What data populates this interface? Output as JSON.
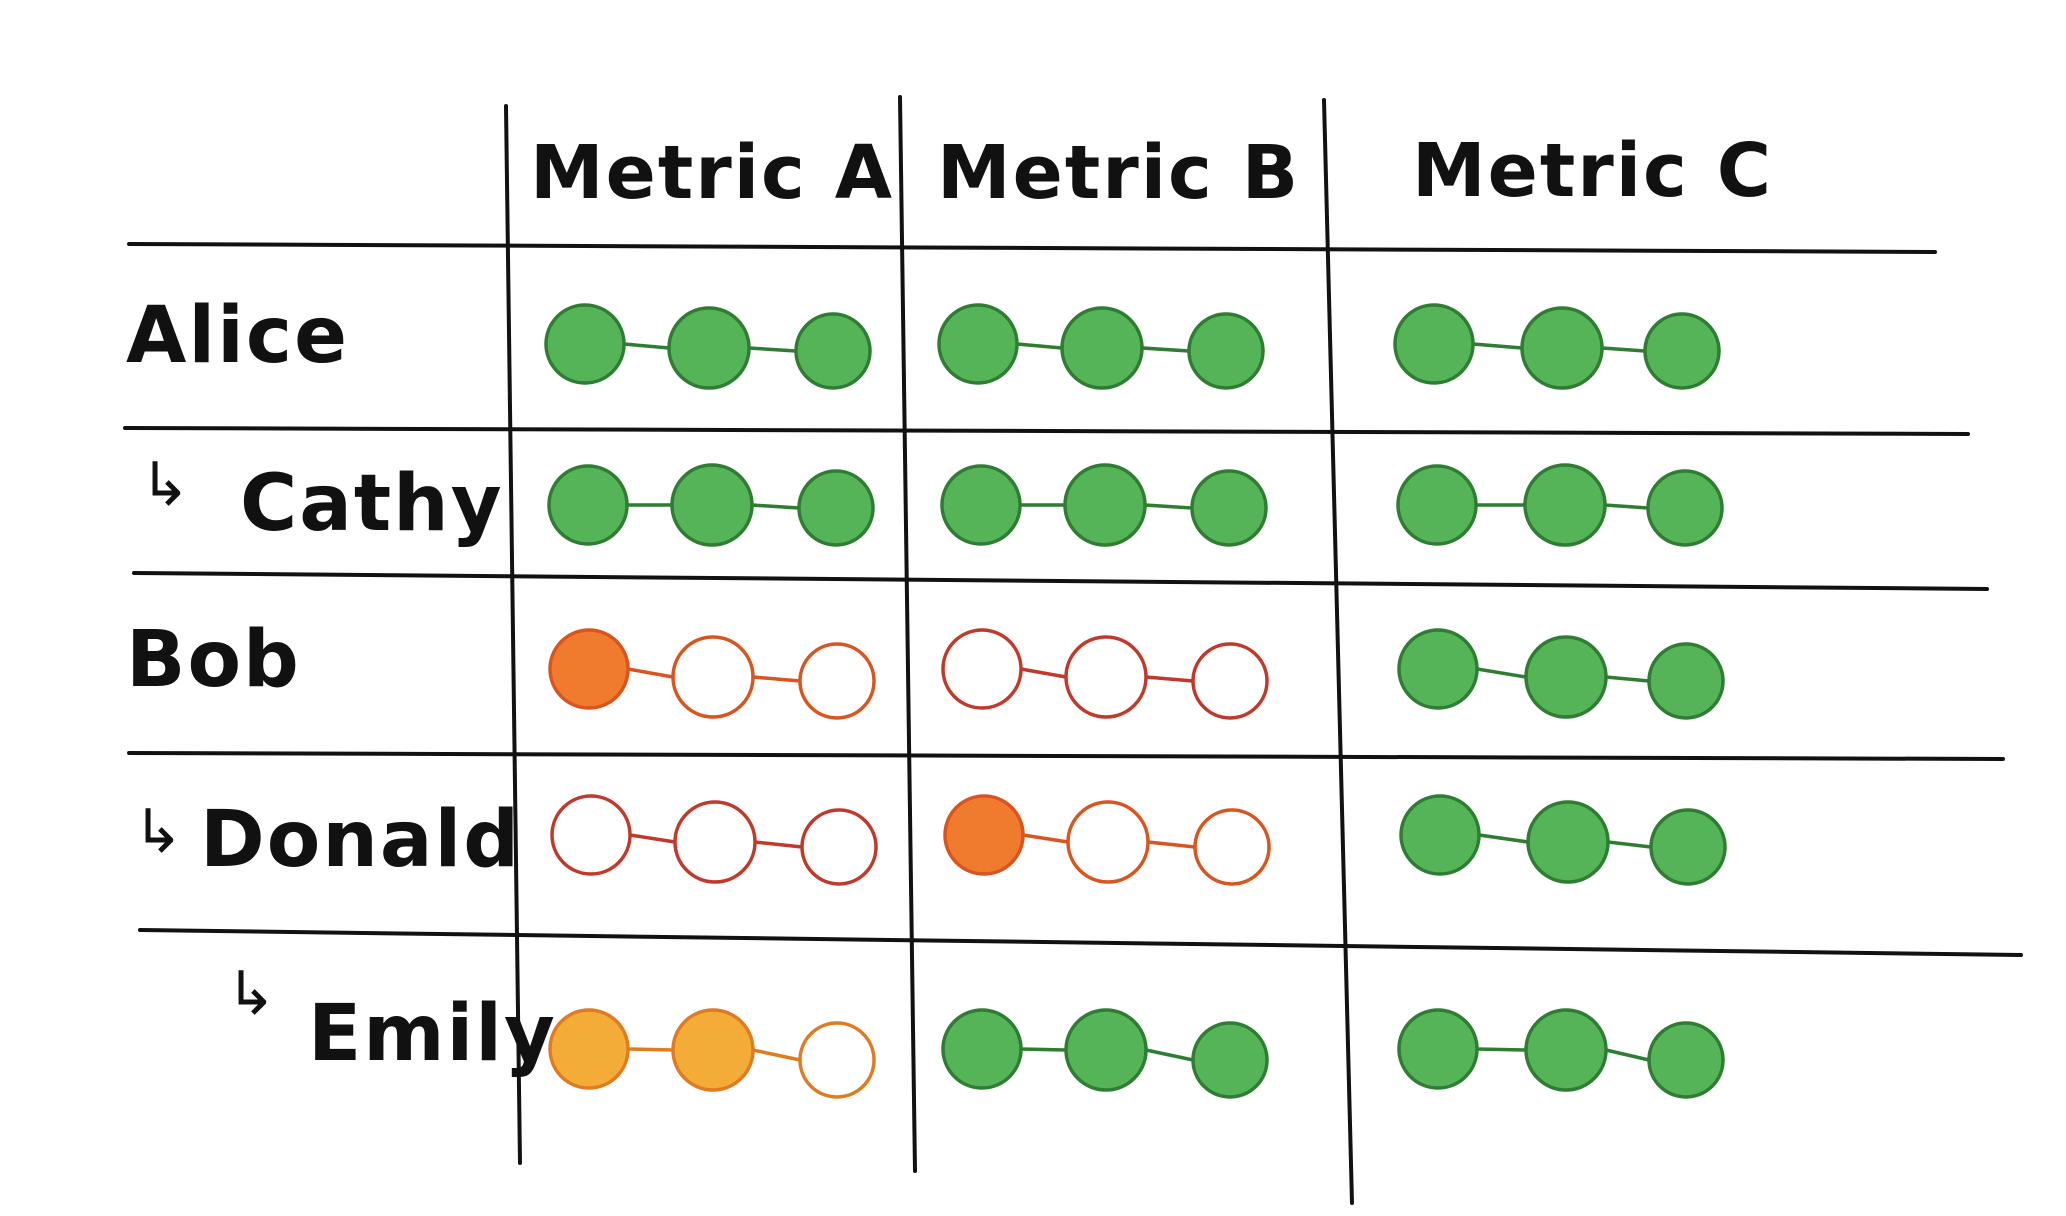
{
  "columns": [
    {
      "label": "Metric A"
    },
    {
      "label": "Metric B"
    },
    {
      "label": "Metric C"
    }
  ],
  "rows": [
    {
      "name": "Alice",
      "child": false,
      "arrow": "",
      "metrics": [
        {
          "status": "green",
          "filled": 3
        },
        {
          "status": "green",
          "filled": 3
        },
        {
          "status": "green",
          "filled": 3
        }
      ]
    },
    {
      "name": "Cathy",
      "child": true,
      "arrow": "↳",
      "metrics": [
        {
          "status": "green",
          "filled": 3
        },
        {
          "status": "green",
          "filled": 3
        },
        {
          "status": "green",
          "filled": 3
        }
      ]
    },
    {
      "name": "Bob",
      "child": false,
      "arrow": "",
      "metrics": [
        {
          "status": "orange",
          "filled": 1
        },
        {
          "status": "red",
          "filled": 0
        },
        {
          "status": "green",
          "filled": 3
        }
      ]
    },
    {
      "name": "Donald",
      "child": true,
      "arrow": "↳",
      "metrics": [
        {
          "status": "red",
          "filled": 0
        },
        {
          "status": "orange",
          "filled": 1
        },
        {
          "status": "green",
          "filled": 3
        }
      ]
    },
    {
      "name": "Emily",
      "child": true,
      "arrow": "↳",
      "metrics": [
        {
          "status": "amber",
          "filled": 2
        },
        {
          "status": "green",
          "filled": 3
        },
        {
          "status": "green",
          "filled": 3
        }
      ]
    }
  ],
  "colors": {
    "green": {
      "fill": "#55b458",
      "stroke": "#2e7d32",
      "link": "#2e7d32"
    },
    "orange": {
      "fill": "#f07a2d",
      "stroke": "#d9541e",
      "link": "#d9541e"
    },
    "red": {
      "fill": "#f07a2d",
      "stroke": "#c0392b",
      "link": "#c0392b"
    },
    "amber": {
      "fill": "#f3ac37",
      "stroke": "#e07b22",
      "link": "#e07b22"
    },
    "empty": "#ffffff",
    "ink": "#111111"
  }
}
